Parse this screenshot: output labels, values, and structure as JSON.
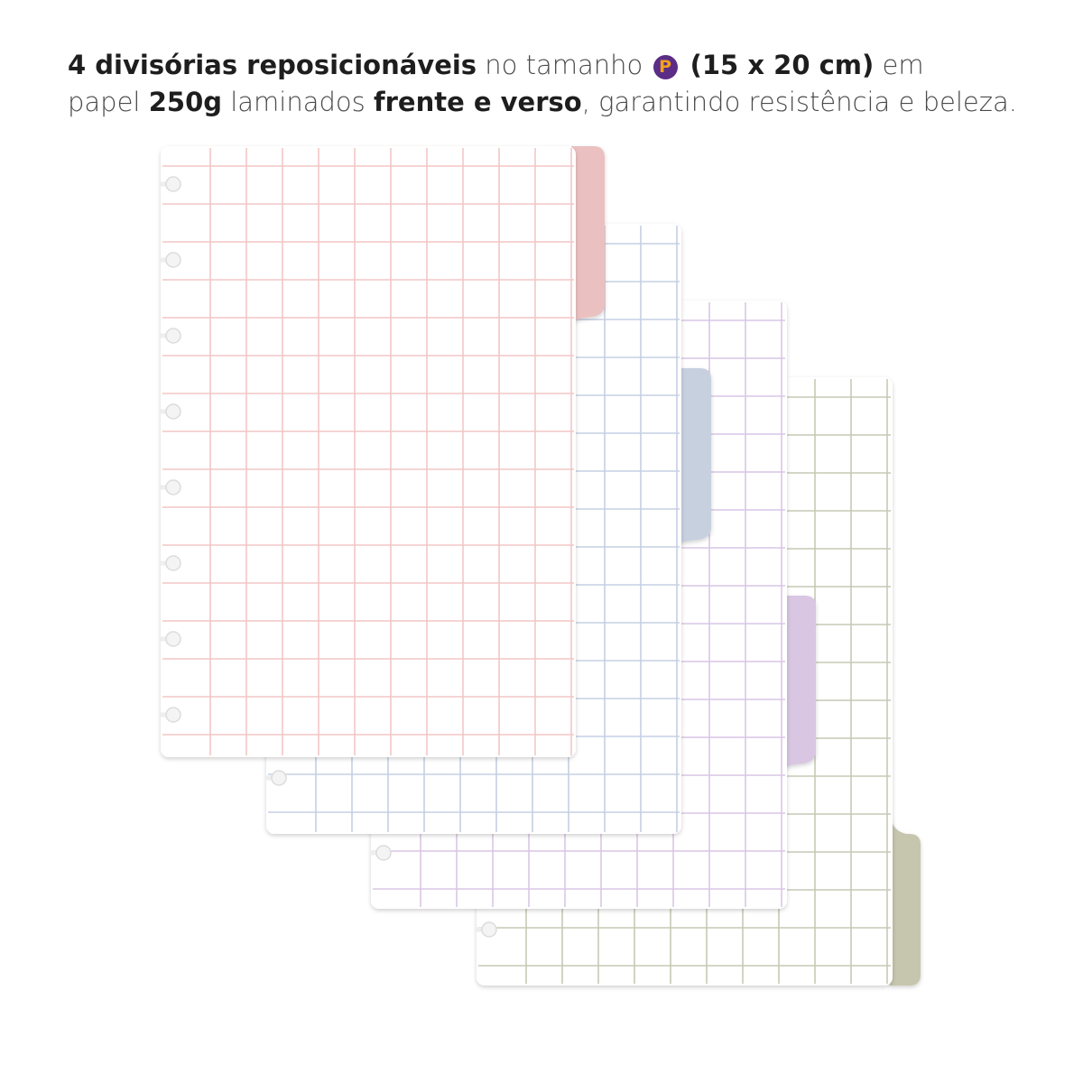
{
  "caption": {
    "line1": [
      {
        "text": "4 divisórias reposicionáveis",
        "bold": true
      },
      {
        "text": " no tamanho ",
        "bold": false
      },
      {
        "badge": "P"
      },
      {
        "text": " (15 x 20 cm)",
        "bold": true
      },
      {
        "text": " em",
        "bold": false
      }
    ],
    "line2": [
      {
        "text": "papel ",
        "bold": false
      },
      {
        "text": "250g",
        "bold": true
      },
      {
        "text": " laminados ",
        "bold": false
      },
      {
        "text": "frente e verso",
        "bold": true
      },
      {
        "text": ", garantindo resistência e beleza.",
        "bold": false
      }
    ]
  },
  "size_badge": {
    "label": "P",
    "fill": "#5b2d86",
    "text_color": "#f0a21c"
  },
  "dividers": [
    {
      "name": "green",
      "line_color": "#c3c7b0",
      "tab_color": "#c6c6ae",
      "tab_position": "bottom",
      "rings": 1
    },
    {
      "name": "purple",
      "line_color": "#d8c4e4",
      "tab_color": "#d8c6e2",
      "tab_position": "lower-middle",
      "rings": 1
    },
    {
      "name": "blue",
      "line_color": "#c2cde2",
      "tab_color": "#c7d0df",
      "tab_position": "upper-middle",
      "rings": 1
    },
    {
      "name": "pink",
      "line_color": "#f2c4c4",
      "tab_color": "#ebc0c1",
      "tab_position": "top",
      "rings": 8
    }
  ]
}
